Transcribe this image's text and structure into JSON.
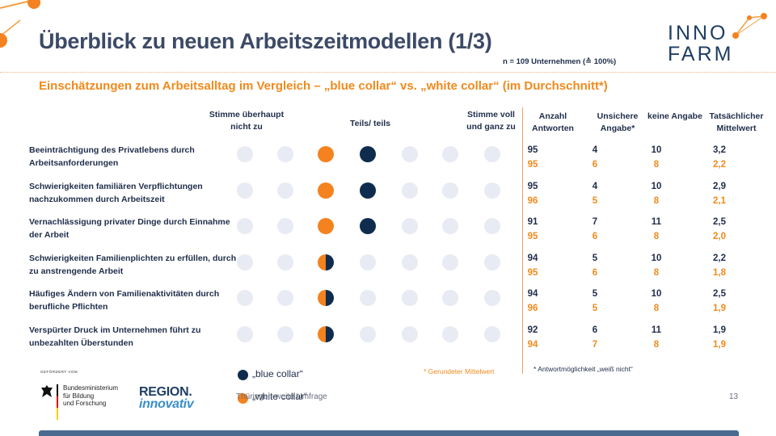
{
  "slide": {
    "title": "Überblick zu neuen Arbeitszeitmodellen (1/3)",
    "n_note": "n = 109 Unternehmen (≙ 100%)",
    "subtitle": "Einschätzungen zum Arbeitsalltag im Vergleich – „blue collar“ vs. „white collar“ (im Durchschnitt*)",
    "page_number": "13",
    "source": "Thüringen-weite Umfrage"
  },
  "logo": {
    "line1": "INNO",
    "line2": "FARM"
  },
  "scale": {
    "left": "Stimme überhaupt nicht zu",
    "middle": "Teils/ teils",
    "right": "Stimme voll und ganz zu"
  },
  "columns": {
    "antworten": "Anzahl Antworten",
    "unsicher": "Unsichere Angabe*",
    "keine": "keine Angabe",
    "mittelwert": "Tatsächlicher Mittelwert"
  },
  "colors": {
    "blue_collar": "#0f2c4e",
    "white_collar": "#f3821f",
    "empty_dot": "#e8ebf3",
    "accent": "#f08a1c"
  },
  "rows": [
    {
      "label": "Beeinträchtigung des Privatlebens durch Arbeitsanforderungen",
      "blue_pos": 3,
      "white_pos": 2,
      "blue": {
        "antworten": "95",
        "unsicher": "4",
        "keine": "10",
        "mittelwert": "3,2"
      },
      "white": {
        "antworten": "95",
        "unsicher": "6",
        "keine": "8",
        "mittelwert": "2,2"
      }
    },
    {
      "label": "Schwierigkeiten familiären Verpflichtungen nachzukommen durch Arbeitszeit",
      "blue_pos": 3,
      "white_pos": 2,
      "blue": {
        "antworten": "95",
        "unsicher": "4",
        "keine": "10",
        "mittelwert": "2,9"
      },
      "white": {
        "antworten": "96",
        "unsicher": "5",
        "keine": "8",
        "mittelwert": "2,1"
      }
    },
    {
      "label": "Vernachlässigung privater Dinge durch Einnahme der Arbeit",
      "blue_pos": 3,
      "white_pos": 2,
      "blue": {
        "antworten": "91",
        "unsicher": "7",
        "keine": "11",
        "mittelwert": "2,5"
      },
      "white": {
        "antworten": "95",
        "unsicher": "6",
        "keine": "8",
        "mittelwert": "2,0"
      }
    },
    {
      "label": "Schwierigkeiten Familienplichten zu erfüllen, durch zu anstrengende Arbeit",
      "blue_pos": 2,
      "white_pos": 2,
      "blue": {
        "antworten": "94",
        "unsicher": "5",
        "keine": "10",
        "mittelwert": "2,2"
      },
      "white": {
        "antworten": "95",
        "unsicher": "6",
        "keine": "8",
        "mittelwert": "1,8"
      }
    },
    {
      "label": "Häufiges Ändern von Familienaktivitäten durch berufliche Pflichten",
      "blue_pos": 2,
      "white_pos": 2,
      "blue": {
        "antworten": "94",
        "unsicher": "5",
        "keine": "10",
        "mittelwert": "2,5"
      },
      "white": {
        "antworten": "96",
        "unsicher": "5",
        "keine": "8",
        "mittelwert": "1,9"
      }
    },
    {
      "label": "Verspürter Druck im Unternehmen führt zu unbezahlten Überstunden",
      "blue_pos": 2,
      "white_pos": 2,
      "blue": {
        "antworten": "92",
        "unsicher": "6",
        "keine": "11",
        "mittelwert": "1,9"
      },
      "white": {
        "antworten": "94",
        "unsicher": "7",
        "keine": "8",
        "mittelwert": "1,9"
      }
    }
  ],
  "legend": {
    "blue": "„blue collar“",
    "white": "„white collar“"
  },
  "notes": {
    "rounded": "* Gerundeter Mittelwert",
    "unsure": "* Antwortmöglichkeit „weiß nicht“"
  },
  "bmbf": {
    "small": "GEFÖRDERT VOM",
    "text": "Bundesministerium\nfür Bildung\nund Forschung"
  },
  "region": {
    "line1": "REGION.",
    "line2": "innovativ"
  }
}
